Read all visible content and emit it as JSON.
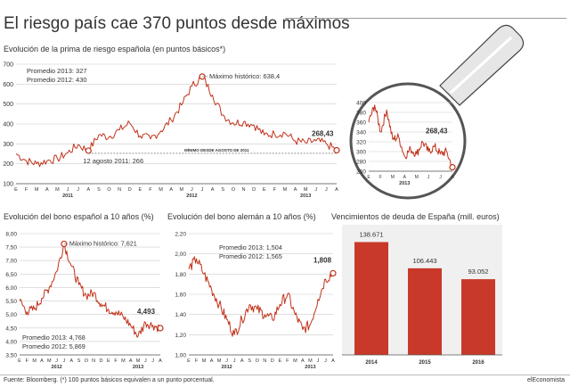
{
  "title": "El riesgo país cae 370 puntos desde máximos",
  "footer": {
    "source": "Fuente: Bloomberg. (*) 100 puntos básicos equivalen a un punto porcentual.",
    "brand": "elEconomista"
  },
  "colors": {
    "line": "#c1331c",
    "bar": "#c8392a",
    "grid": "#cccccc",
    "rule": "#999999"
  },
  "chart_data": [
    {
      "type": "line",
      "title": "Evolución de la prima de riesgo española (en puntos básicos*)",
      "ylim": [
        100,
        700
      ],
      "yticks": [
        100,
        200,
        300,
        400,
        500,
        600,
        700
      ],
      "month_labels": [
        "E",
        "F",
        "M",
        "A",
        "M",
        "J",
        "J",
        "A",
        "S",
        "O",
        "N",
        "D",
        "E",
        "F",
        "M",
        "A",
        "M",
        "J",
        "J",
        "A",
        "S",
        "O",
        "N",
        "D",
        "E",
        "F",
        "M",
        "A",
        "M",
        "J",
        "J",
        "A"
      ],
      "year_labels": [
        {
          "label": "2011",
          "month_index": 5
        },
        {
          "label": "2012",
          "month_index": 17
        },
        {
          "label": "2013",
          "month_index": 28
        }
      ],
      "series": [
        {
          "x": [
            0,
            1,
            2,
            3,
            4,
            5,
            6,
            7,
            8,
            9,
            10,
            11,
            12,
            13,
            14,
            15,
            16,
            17,
            18,
            19,
            20,
            21,
            22,
            23,
            24,
            25,
            26,
            27,
            28,
            29,
            30,
            31
          ],
          "values": [
            250,
            215,
            200,
            215,
            225,
            255,
            295,
            266,
            345,
            335,
            370,
            405,
            340,
            325,
            365,
            420,
            495,
            590,
            638,
            545,
            445,
            405,
            410,
            395,
            345,
            350,
            355,
            315,
            305,
            315,
            300,
            268
          ]
        }
      ],
      "annotations": {
        "avg": [
          "Promedio 2013: 327",
          "Promedio 2012: 430"
        ],
        "max": {
          "text": "Máximo histórico: 638,4",
          "x": 18,
          "y": 638
        },
        "min": {
          "text": "12 agosto 2011: 266",
          "x": 7,
          "y": 266
        },
        "min_line": {
          "text": "MÍNIMO DESDE AGOSTO DE 2011",
          "y": 266
        },
        "last": {
          "text": "268,43",
          "x": 31,
          "y": 268
        }
      }
    },
    {
      "type": "line",
      "title": "zoom",
      "ylim": [
        260,
        400
      ],
      "yticks": [
        260,
        280,
        300,
        320,
        340,
        360,
        380,
        400
      ],
      "month_labels": [
        "E",
        "F",
        "M",
        "A",
        "M",
        "J",
        "J",
        "A"
      ],
      "year_labels": [
        {
          "label": "2013",
          "month_index": 3
        }
      ],
      "series": [
        {
          "x": [
            0,
            0.5,
            1,
            1.5,
            2,
            2.5,
            3,
            3.5,
            4,
            4.5,
            5,
            5.5,
            6,
            6.5,
            7
          ],
          "values": [
            360,
            395,
            340,
            385,
            325,
            330,
            290,
            305,
            295,
            320,
            300,
            310,
            295,
            300,
            268
          ]
        }
      ],
      "annotations": {
        "last": {
          "text": "268,43",
          "x": 7,
          "y": 268
        }
      }
    },
    {
      "type": "line",
      "title": "Evolución del bono español a 10 años (%)",
      "ylim": [
        3.5,
        8.0
      ],
      "yticks": [
        "3,50",
        "4,00",
        "4,50",
        "5,00",
        "5,50",
        "6,00",
        "6,50",
        "7,00",
        "7,50",
        "8,00"
      ],
      "month_labels": [
        "E",
        "F",
        "M",
        "A",
        "M",
        "J",
        "J",
        "A",
        "S",
        "O",
        "N",
        "D",
        "E",
        "F",
        "M",
        "A",
        "M",
        "J",
        "J",
        "A"
      ],
      "year_labels": [
        {
          "label": "2012",
          "month_index": 5
        },
        {
          "label": "2013",
          "month_index": 16
        }
      ],
      "series": [
        {
          "x": [
            0,
            1,
            2,
            3,
            4,
            5,
            6,
            7,
            8,
            9,
            10,
            11,
            12,
            13,
            14,
            15,
            16,
            17,
            18,
            19
          ],
          "values": [
            5.5,
            5.1,
            5.2,
            5.6,
            6.0,
            6.6,
            7.621,
            6.8,
            6.1,
            5.7,
            5.8,
            5.4,
            5.2,
            5.1,
            4.9,
            4.6,
            4.2,
            4.7,
            4.6,
            4.493
          ]
        }
      ],
      "annotations": {
        "avg": [
          "Promedio 2013: 4,768",
          "Promedio 2012: 5,869"
        ],
        "max": {
          "text": "Máximo histórico: 7,621",
          "x": 6,
          "y": 7.621
        },
        "last": {
          "text": "4,493",
          "x": 19,
          "y": 4.493
        }
      }
    },
    {
      "type": "line",
      "title": "Evolución del bono alemán a 10 años (%)",
      "ylim": [
        1.0,
        2.2
      ],
      "yticks": [
        "1,00",
        "1,20",
        "1,40",
        "1,60",
        "1,80",
        "2,00",
        "2,20"
      ],
      "month_labels": [
        "E",
        "F",
        "M",
        "A",
        "M",
        "J",
        "J",
        "A",
        "S",
        "O",
        "N",
        "D",
        "E",
        "F",
        "M",
        "A",
        "M",
        "J",
        "J",
        "A"
      ],
      "year_labels": [
        {
          "label": "2012",
          "month_index": 5
        },
        {
          "label": "2013",
          "month_index": 16
        }
      ],
      "series": [
        {
          "x": [
            0,
            1,
            2,
            3,
            4,
            5,
            6,
            7,
            8,
            9,
            10,
            11,
            12,
            13,
            14,
            15,
            16,
            17,
            18,
            19
          ],
          "values": [
            1.85,
            1.95,
            1.8,
            1.65,
            1.5,
            1.35,
            1.2,
            1.35,
            1.5,
            1.45,
            1.4,
            1.35,
            1.5,
            1.6,
            1.4,
            1.25,
            1.3,
            1.55,
            1.75,
            1.808
          ]
        }
      ],
      "annotations": {
        "avg": [
          "Promedio 2013: 1,504",
          "Promedio 2012: 1,565"
        ],
        "last": {
          "text": "1,808",
          "x": 19,
          "y": 1.808
        }
      }
    },
    {
      "type": "bar",
      "title": "Vencimientos de deuda de España (mill. euros)",
      "categories": [
        "2014",
        "2015",
        "2016"
      ],
      "values": [
        138671,
        106443,
        93052
      ],
      "value_labels": [
        "138.671",
        "106.443",
        "93.052"
      ]
    }
  ]
}
